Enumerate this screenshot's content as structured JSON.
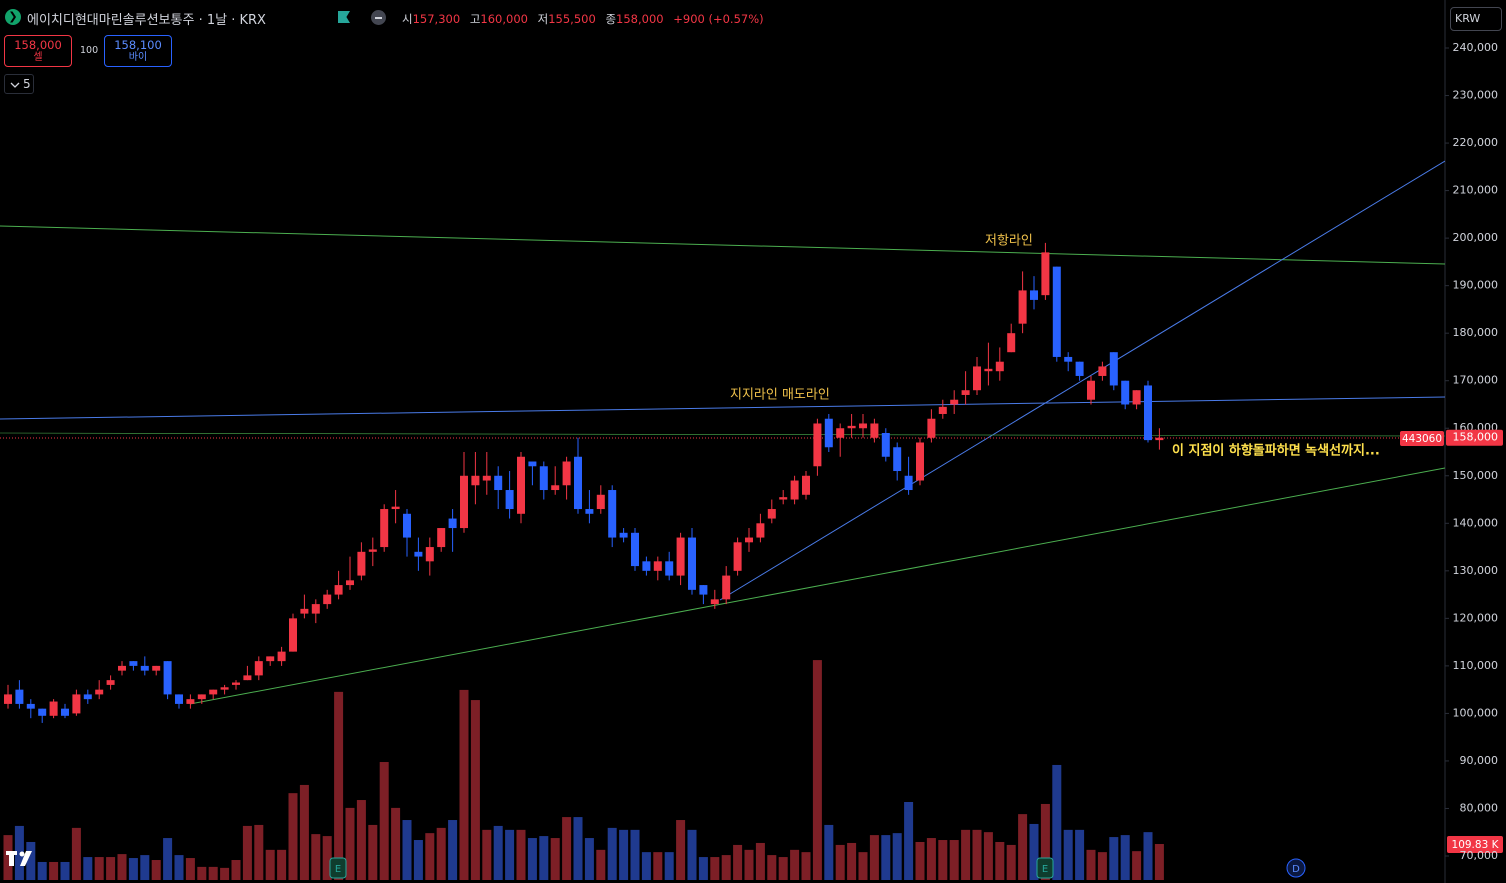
{
  "header": {
    "title": "에이치디현대마린솔루션보통주 · 1날 · KRX",
    "open_label": "시",
    "open": "157,300",
    "high_label": "고",
    "high": "160,000",
    "low_label": "저",
    "low": "155,500",
    "close_label": "종",
    "close": "158,000",
    "change": "+900 (+0.57%)"
  },
  "trade": {
    "sell_price": "158,000",
    "sell_label": "셀",
    "quantity": "100",
    "buy_price": "158,100",
    "buy_label": "바이",
    "interval": "5"
  },
  "currency": "KRW",
  "markers": [
    "E",
    "E",
    "D"
  ],
  "chart_data": {
    "type": "candlestick",
    "up_color": "#f23645",
    "down_color": "#2962ff",
    "volume_up_color": "#7d1f26",
    "volume_down_color": "#1f3a8f",
    "open": [
      102000,
      105000,
      102000,
      101000,
      99500,
      101000,
      100000,
      104000,
      104000,
      106000,
      109000,
      111000,
      110000,
      109000,
      111000,
      104000,
      102000,
      103000,
      104000,
      105000,
      106000,
      107000,
      108000,
      111000,
      111000,
      113000,
      121000,
      121000,
      123000,
      125000,
      127000,
      129000,
      134000,
      135000,
      143000,
      142000,
      134000,
      132000,
      135000,
      141000,
      139000,
      148000,
      149000,
      150000,
      147000,
      142000,
      153000,
      152000,
      147000,
      148000,
      154000,
      143000,
      143000,
      147000,
      138000,
      138000,
      132000,
      130000,
      132000,
      129000,
      137000,
      127000,
      123000,
      124000,
      130000,
      136000,
      137000,
      141000,
      145000,
      145000,
      146000,
      152000,
      162000,
      158000,
      160000,
      160000,
      158000,
      159000,
      156000,
      150000,
      149000,
      158000,
      163000,
      165000,
      167000,
      168000,
      172000,
      172000,
      176000,
      182000,
      189000,
      188000,
      194000,
      175000,
      174000,
      166000,
      171000,
      176000,
      170000,
      165000,
      169000,
      157500
    ],
    "high": [
      106000,
      107000,
      103000,
      101000,
      103000,
      102000,
      105000,
      105000,
      107000,
      108000,
      111000,
      111000,
      112000,
      110000,
      111000,
      104000,
      104000,
      104000,
      105000,
      106000,
      107000,
      110000,
      112000,
      112000,
      114000,
      121000,
      125000,
      124000,
      126000,
      130000,
      133000,
      136000,
      137000,
      144000,
      147000,
      143000,
      137000,
      137000,
      139000,
      143000,
      155000,
      155000,
      155000,
      152000,
      151000,
      155000,
      153000,
      153000,
      152000,
      154000,
      158000,
      147000,
      148000,
      148000,
      139000,
      139000,
      133000,
      133000,
      134000,
      138000,
      139000,
      127000,
      126000,
      131000,
      137000,
      139000,
      142000,
      145000,
      147000,
      150000,
      151000,
      162000,
      163000,
      161000,
      163000,
      163000,
      162000,
      160000,
      157000,
      154000,
      158000,
      164000,
      166000,
      168000,
      172000,
      175000,
      178000,
      177000,
      182000,
      193000,
      192000,
      199000,
      194000,
      176000,
      174000,
      171000,
      174000,
      176000,
      170000,
      168000,
      170000,
      160000
    ],
    "low": [
      101000,
      101000,
      99000,
      98000,
      99000,
      99000,
      99500,
      102000,
      103000,
      105000,
      108000,
      109000,
      108000,
      108000,
      103000,
      101000,
      101000,
      102000,
      103000,
      104000,
      105000,
      107000,
      107000,
      110000,
      110000,
      113000,
      120000,
      119000,
      122000,
      124000,
      126000,
      128000,
      131000,
      134000,
      140000,
      133000,
      130000,
      129000,
      134000,
      134000,
      138000,
      144000,
      146000,
      143000,
      141000,
      140000,
      148000,
      145000,
      146000,
      145000,
      142000,
      140000,
      142000,
      135000,
      136000,
      130000,
      129000,
      128000,
      128000,
      127000,
      125000,
      123000,
      122000,
      123000,
      129000,
      134000,
      136000,
      140000,
      144000,
      144000,
      145000,
      150000,
      155000,
      154000,
      158000,
      158000,
      157000,
      153000,
      149000,
      146000,
      148000,
      157000,
      162000,
      163000,
      165000,
      167000,
      169000,
      170000,
      176000,
      180000,
      185000,
      187000,
      174000,
      172000,
      170000,
      165000,
      170000,
      168000,
      164000,
      164000,
      157000,
      155500
    ],
    "close": [
      104000,
      102000,
      101000,
      99500,
      102500,
      99500,
      104000,
      103000,
      105000,
      107000,
      110000,
      110000,
      109000,
      110000,
      104000,
      102000,
      103000,
      104000,
      105000,
      105500,
      106500,
      108000,
      111000,
      112000,
      113000,
      120000,
      122000,
      123000,
      125000,
      127000,
      128000,
      134000,
      134500,
      143000,
      143500,
      137000,
      133000,
      135000,
      139000,
      139000,
      150000,
      150000,
      150000,
      147000,
      143000,
      154000,
      152000,
      147000,
      148000,
      153000,
      143000,
      142000,
      146000,
      137000,
      137000,
      131000,
      130000,
      132000,
      129000,
      137000,
      126000,
      125000,
      124000,
      129000,
      136000,
      137000,
      140000,
      143000,
      145500,
      149000,
      150000,
      161000,
      156000,
      160000,
      160500,
      161000,
      161000,
      154000,
      151000,
      147000,
      157000,
      162000,
      164500,
      166000,
      168000,
      173000,
      172500,
      174000,
      180000,
      189000,
      187000,
      197000,
      175000,
      174000,
      171000,
      170000,
      173000,
      169000,
      165000,
      168000,
      157500,
      158000
    ],
    "volume": [
      137000,
      165000,
      116000,
      55000,
      55000,
      55000,
      159000,
      70000,
      70000,
      70000,
      79000,
      67000,
      76000,
      61000,
      128000,
      76000,
      67000,
      40000,
      40000,
      37000,
      61000,
      165000,
      168000,
      92000,
      92000,
      265000,
      290000,
      140000,
      134000,
      574000,
      220000,
      244000,
      168000,
      360000,
      220000,
      183000,
      122000,
      143000,
      159000,
      183000,
      580000,
      549000,
      153000,
      165000,
      153000,
      153000,
      128000,
      134000,
      128000,
      192000,
      192000,
      128000,
      92000,
      159000,
      153000,
      153000,
      85000,
      85000,
      85000,
      183000,
      153000,
      70000,
      70000,
      76000,
      107000,
      92000,
      113000,
      76000,
      70000,
      92000,
      85000,
      671000,
      168000,
      107000,
      113000,
      85000,
      137000,
      137000,
      143000,
      238000,
      116000,
      128000,
      122000,
      122000,
      153000,
      153000,
      146000,
      116000,
      107000,
      201000,
      171000,
      232000,
      351000,
      153000,
      153000,
      92000,
      85000,
      131000,
      137000,
      88000,
      146000,
      109830
    ],
    "volume_label": "109.83 K",
    "ylim": [
      64320,
      250100
    ],
    "volume_ylim": [
      0,
      2685000
    ],
    "yticks": [
      {
        "value": 70000,
        "label": "70,000"
      },
      {
        "value": 80000,
        "label": "80,000"
      },
      {
        "value": 90000,
        "label": "90,000"
      },
      {
        "value": 100000,
        "label": "100,000"
      },
      {
        "value": 110000,
        "label": "110,000"
      },
      {
        "value": 120000,
        "label": "120,000"
      },
      {
        "value": 130000,
        "label": "130,000"
      },
      {
        "value": 140000,
        "label": "140,000"
      },
      {
        "value": 150000,
        "label": "150,000"
      },
      {
        "value": 160000,
        "label": "160,000"
      },
      {
        "value": 170000,
        "label": "170,000"
      },
      {
        "value": 180000,
        "label": "180,000"
      },
      {
        "value": 190000,
        "label": "190,000"
      },
      {
        "value": 200000,
        "label": "200,000"
      },
      {
        "value": 210000,
        "label": "210,000"
      },
      {
        "value": 220000,
        "label": "220,000"
      },
      {
        "value": 230000,
        "label": "230,000"
      },
      {
        "value": 240000,
        "label": "240,000"
      }
    ],
    "last_price": 158000,
    "last_price_label": "158,000",
    "indicator_label": "443060",
    "annotations": [
      "저항라인",
      "지지라인 매도라인",
      "이 지점이 하향돌파하면 녹색선까지..."
    ]
  }
}
